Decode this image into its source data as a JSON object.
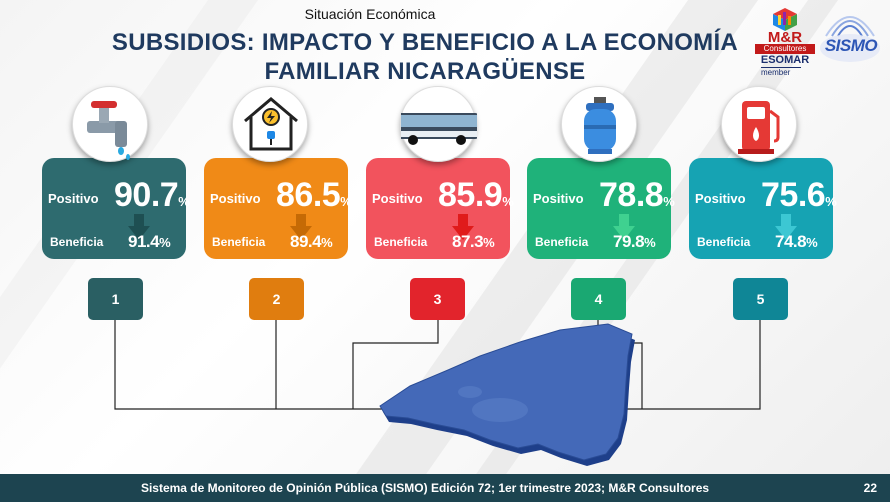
{
  "header": {
    "section": "Situación Económica",
    "title_line1": "SUBSIDIOS: IMPACTO Y BENEFICIO A LA ECONOMÍA",
    "title_line2": "FAMILIAR NICARAGÜENSE"
  },
  "logos": {
    "mr_name": "M&R",
    "mr_sub": "Consultores",
    "esomar": "ESOMAR",
    "member": "member",
    "sismo": "SISMO"
  },
  "cards": [
    {
      "icon": "water-tap-icon",
      "positivo_label": "Positivo",
      "positivo_value": "90.7",
      "beneficia_label": "Beneficia",
      "beneficia_value": "91.4",
      "pct": "%",
      "number": "1",
      "color": "#2e6b6f",
      "arrow_color": "#1e4f52",
      "box_color": "#2a5f63"
    },
    {
      "icon": "electricity-house-icon",
      "positivo_label": "Positivo",
      "positivo_value": "86.5",
      "beneficia_label": "Beneficia",
      "beneficia_value": "89.4",
      "pct": "%",
      "number": "2",
      "color": "#f08a17",
      "arrow_color": "#c56a05",
      "box_color": "#e07d0f"
    },
    {
      "icon": "bus-icon",
      "positivo_label": "Positivo",
      "positivo_value": "85.9",
      "beneficia_label": "Beneficia",
      "beneficia_value": "87.3",
      "pct": "%",
      "number": "3",
      "color": "#f2535d",
      "arrow_color": "#e01b1b",
      "box_color": "#e2242c"
    },
    {
      "icon": "gas-cylinder-icon",
      "positivo_label": "Positivo",
      "positivo_value": "78.8",
      "beneficia_label": "Beneficia",
      "beneficia_value": "79.8",
      "pct": "%",
      "number": "4",
      "color": "#1fb27a",
      "arrow_color": "#3fd190",
      "box_color": "#1aa872"
    },
    {
      "icon": "fuel-pump-icon",
      "positivo_label": "Positivo",
      "positivo_value": "75.6",
      "beneficia_label": "Beneficia",
      "beneficia_value": "74.8",
      "pct": "%",
      "number": "5",
      "color": "#16a3b3",
      "arrow_color": "#3cc7d3",
      "box_color": "#0f8696"
    }
  ],
  "map": {
    "name": "nicaragua-map",
    "color": "#3f63b0"
  },
  "footer": {
    "text": "Sistema de Monitoreo de Opinión Pública (SISMO) Edición 72; 1er trimestre 2023; M&R Consultores",
    "page": "22"
  }
}
